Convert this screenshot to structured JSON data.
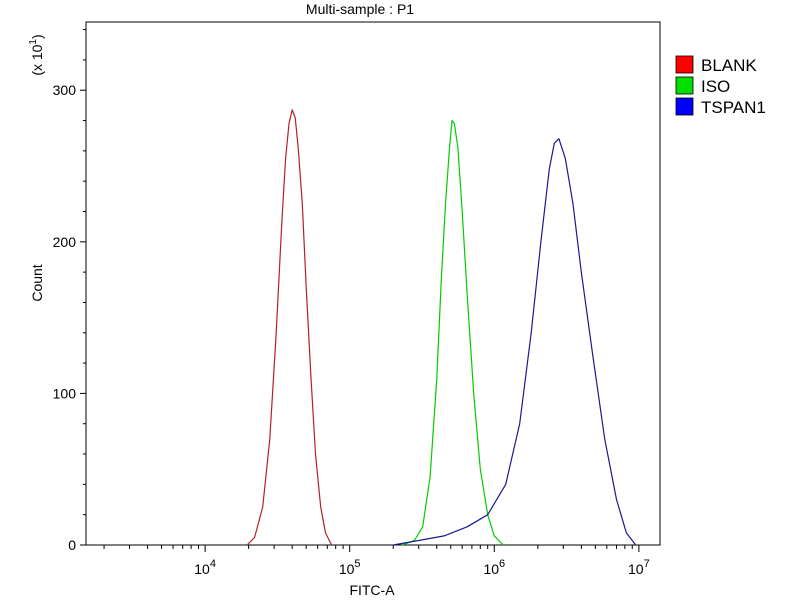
{
  "chart_data": {
    "type": "line",
    "title": "Multi-sample : P1",
    "xlabel": "FITC-A",
    "ylabel": "Count",
    "y_multiplier": "(x 10^1)",
    "x_scale": "log",
    "xlim": [
      1500,
      14000000
    ],
    "ylim": [
      0,
      345
    ],
    "x_ticks": [
      {
        "value": 10000,
        "base": "10",
        "exp": "4"
      },
      {
        "value": 100000,
        "base": "10",
        "exp": "5"
      },
      {
        "value": 1000000,
        "base": "10",
        "exp": "6"
      },
      {
        "value": 10000000,
        "base": "10",
        "exp": "7"
      }
    ],
    "y_ticks": [
      {
        "value": 0,
        "label": "0"
      },
      {
        "value": 100,
        "label": "100"
      },
      {
        "value": 200,
        "label": "200"
      },
      {
        "value": 300,
        "label": "300"
      }
    ],
    "grid": false,
    "legend_position": "right",
    "series": [
      {
        "name": "BLANK",
        "color": "#ff0000",
        "line_color": "#b22222",
        "x": [
          19500,
          22000,
          25000,
          28000,
          31000,
          34000,
          36000,
          38000,
          40000,
          42000,
          44000,
          47000,
          50000,
          54000,
          58000,
          63000,
          68000,
          75000
        ],
        "y": [
          0,
          5,
          25,
          70,
          140,
          215,
          255,
          278,
          287,
          282,
          262,
          225,
          170,
          110,
          60,
          25,
          8,
          0
        ]
      },
      {
        "name": "ISO",
        "color": "#00e000",
        "line_color": "#00cc00",
        "x": [
          230000,
          280000,
          320000,
          360000,
          400000,
          430000,
          460000,
          490000,
          510000,
          530000,
          560000,
          600000,
          650000,
          720000,
          800000,
          900000,
          1000000,
          1150000
        ],
        "y": [
          0,
          3,
          12,
          45,
          110,
          175,
          225,
          262,
          280,
          278,
          262,
          220,
          165,
          100,
          50,
          20,
          6,
          0
        ]
      },
      {
        "name": "TSPAN1",
        "color": "#0000ff",
        "line_color": "#1a1a8c",
        "x": [
          200000,
          300000,
          450000,
          650000,
          900000,
          1200000,
          1500000,
          1800000,
          2100000,
          2400000,
          2600000,
          2800000,
          3100000,
          3500000,
          4000000,
          4800000,
          5800000,
          7000000,
          8200000,
          9500000
        ],
        "y": [
          0,
          3,
          6,
          12,
          20,
          40,
          80,
          140,
          200,
          248,
          265,
          268,
          255,
          225,
          180,
          125,
          70,
          30,
          8,
          0
        ]
      }
    ]
  }
}
